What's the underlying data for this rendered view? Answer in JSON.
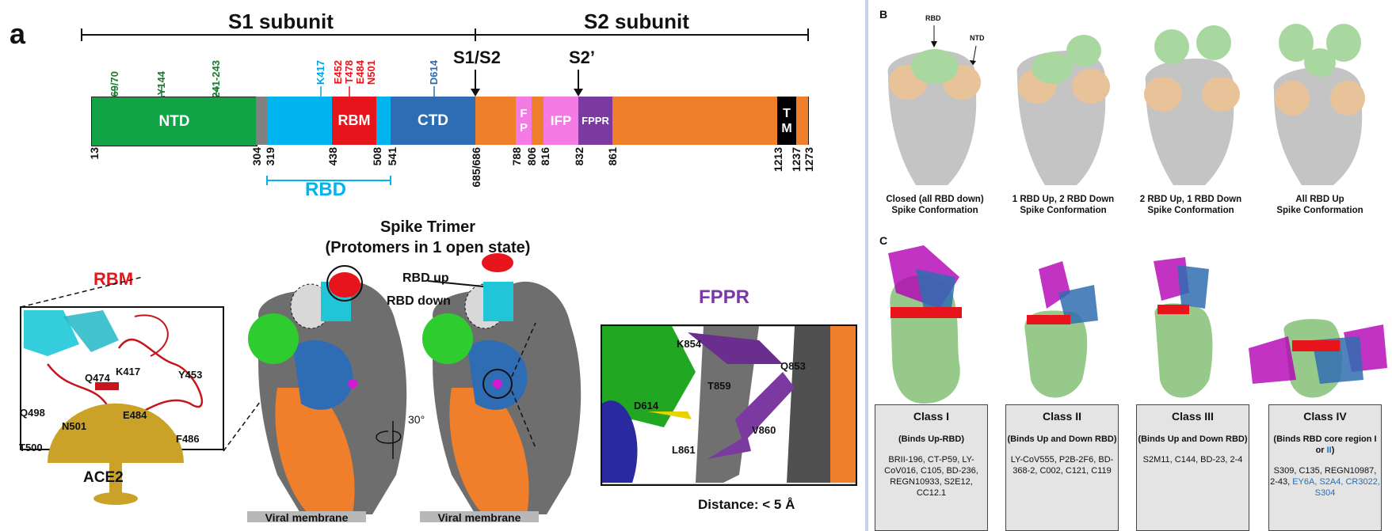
{
  "panel_a": {
    "panel_label": "a",
    "s1_label": "S1 subunit",
    "s2_label": "S2 subunit",
    "s1s2_label": "S1/S2",
    "s2prime_label": "S2’",
    "mutations_green": [
      "ΔHV 69/70",
      "ΔY144",
      "ΔKSF 241-243"
    ],
    "mutation_k417": "K417",
    "mutations_red": [
      "E452",
      "T478",
      "E484",
      "N501"
    ],
    "mutation_d614": "D614",
    "domains": {
      "ntd": "NTD",
      "rbm": "RBM",
      "ctd": "CTD",
      "fp": "F P",
      "ifp": "IFP",
      "fppr": "FPPR",
      "tm": "T M"
    },
    "positions": [
      "13",
      "304",
      "319",
      "438",
      "508",
      "541",
      "685/686",
      "788",
      "806",
      "816",
      "832",
      "861",
      "1213",
      "1237",
      "1273"
    ],
    "rbd_label": "RBD",
    "trimer_title_1": "Spike Trimer",
    "trimer_title_2": "(Protomers in 1 open state)",
    "rbd_up": "RBD up",
    "rbd_down": "RBD down",
    "rbm_title": "RBM",
    "fppr_title": "FPPR",
    "rbm_residues": [
      "Q474",
      "K417",
      "Y453",
      "E484",
      "Q498",
      "N501",
      "T500",
      "F486"
    ],
    "ace2_label": "ACE2",
    "rotation_label": "30°",
    "viral_membrane_1": "Viral membrane",
    "viral_membrane_2": "Viral membrane",
    "fppr_residues": [
      "K854",
      "Q853",
      "T859",
      "D614",
      "V860",
      "L861"
    ],
    "distance_label": "Distance: < 5 Å"
  },
  "panel_b": {
    "label": "B",
    "rbd_arrow": "RBD",
    "ntd_arrow": "NTD",
    "conformations": [
      {
        "line1": "Closed (all RBD down)",
        "line2": "Spike Conformation"
      },
      {
        "line1": "1 RBD Up, 2 RBD Down",
        "line2": "Spike Conformation"
      },
      {
        "line1": "2 RBD Up, 1 RBD Down",
        "line2": "Spike Conformation"
      },
      {
        "line1": "All RBD Up",
        "line2": "Spike Conformation"
      }
    ]
  },
  "panel_c": {
    "label": "C",
    "classes": [
      {
        "name": "Class I",
        "desc": "(Binds Up-RBD)",
        "antibodies": "BRII-196, CT-P59, LY-CoV016, C105, BD-236, REGN10933, S2E12, CC12.1"
      },
      {
        "name": "Class II",
        "desc": "(Binds Up and Down RBD)",
        "antibodies": "LY-CoV555, P2B-2F6, BD-368-2, C002, C121, C119"
      },
      {
        "name": "Class III",
        "desc": "(Binds Up and Down RBD)",
        "antibodies": "S2M11, C144, BD-23, 2-4"
      },
      {
        "name": "Class IV",
        "desc_a": "(Binds RBD core region I or ",
        "desc_b": "II",
        "desc_c": ")",
        "antibodies_black": "S309, C135, REGN10987, 2-43,",
        "antibodies_blue": "EY6A, S2A4, CR3022, S304"
      }
    ]
  },
  "colors": {
    "ntd": "#10a447",
    "rbd": "#00b4ef",
    "rbm": "#e8141b",
    "ctd": "#2e6db4",
    "s2": "#ef7f2b",
    "fp": "#f47be4",
    "fppr": "#7a3aa0",
    "tm": "#000000",
    "mut_green": "#1a7a2e",
    "mut_red": "#e8141b",
    "k417": "#00a3e0",
    "d614": "#2e6db4",
    "ace2": "#c9a227"
  }
}
